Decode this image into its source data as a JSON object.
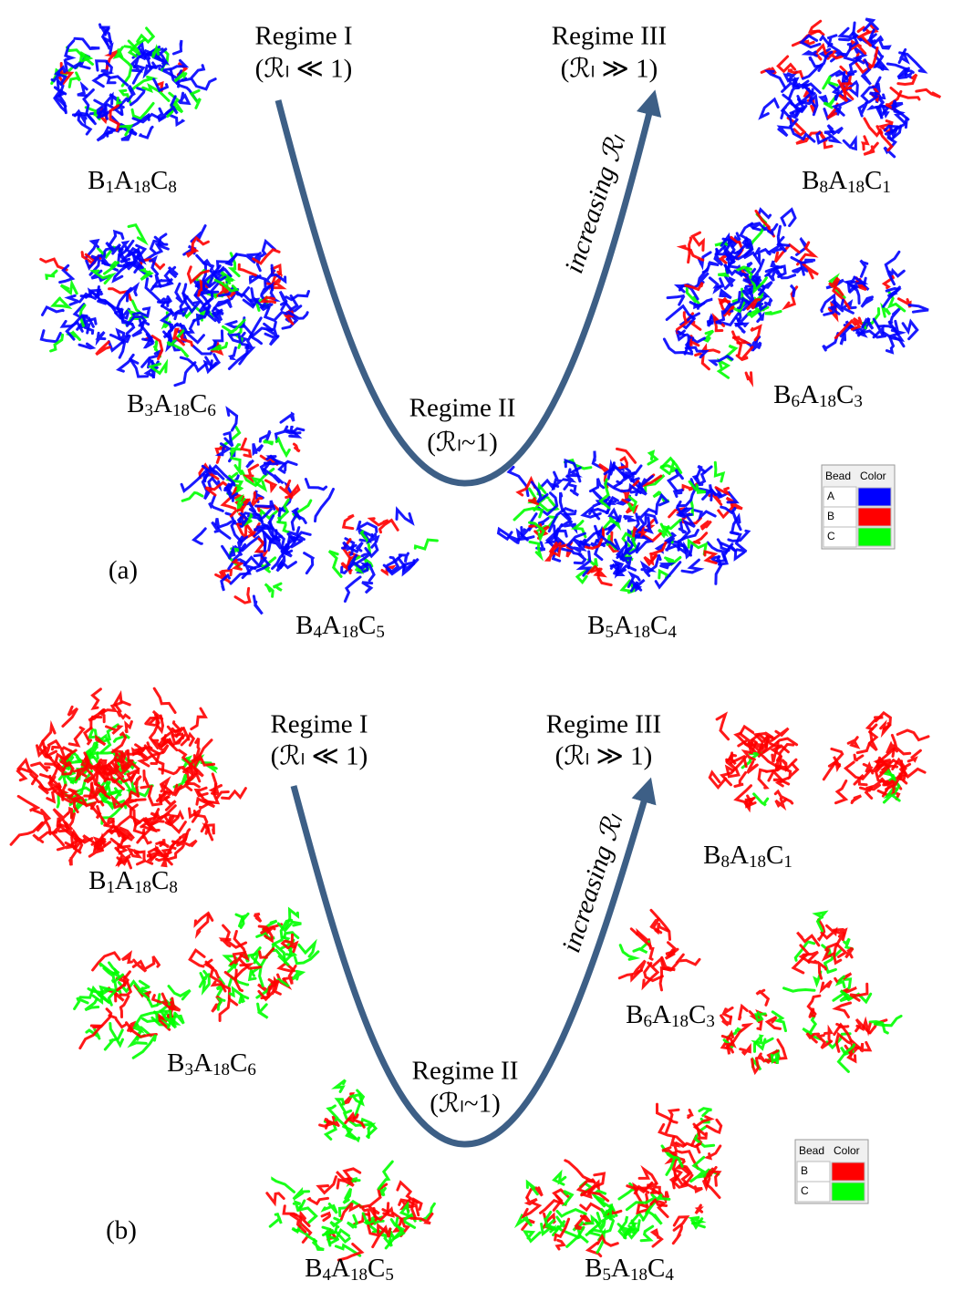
{
  "panels": [
    {
      "label": "(a)",
      "regimes": [
        {
          "name": "Regime I",
          "condition": "(ℛₗ ≪ 1)"
        },
        {
          "name": "Regime II",
          "condition": "(ℛₗ~1)"
        },
        {
          "name": "Regime III",
          "condition": "(ℛₗ ≫ 1)"
        }
      ],
      "arrow_label": "increasing ℛₗ",
      "systems": [
        "B1A18C8",
        "B3A18C6",
        "B4A18C5",
        "B5A18C4",
        "B6A18C3",
        "B8A18C1"
      ],
      "legend": {
        "header": [
          "Bead",
          "Color"
        ],
        "rows": [
          {
            "bead": "A",
            "color": "#0000ff"
          },
          {
            "bead": "B",
            "color": "#ff0000"
          },
          {
            "bead": "C",
            "color": "#00ff00"
          }
        ]
      }
    },
    {
      "label": "(b)",
      "regimes": [
        {
          "name": "Regime I",
          "condition": "(ℛₗ ≪ 1)"
        },
        {
          "name": "Regime II",
          "condition": "(ℛₗ~1)"
        },
        {
          "name": "Regime III",
          "condition": "(ℛₗ ≫ 1)"
        }
      ],
      "arrow_label": "increasing ℛₗ",
      "systems": [
        "B1A18C8",
        "B3A18C6",
        "B4A18C5",
        "B5A18C4",
        "B6A18C3",
        "B8A18C1"
      ],
      "legend": {
        "header": [
          "Bead",
          "Color"
        ],
        "rows": [
          {
            "bead": "B",
            "color": "#ff0000"
          },
          {
            "bead": "C",
            "color": "#00ff00"
          }
        ]
      }
    }
  ]
}
